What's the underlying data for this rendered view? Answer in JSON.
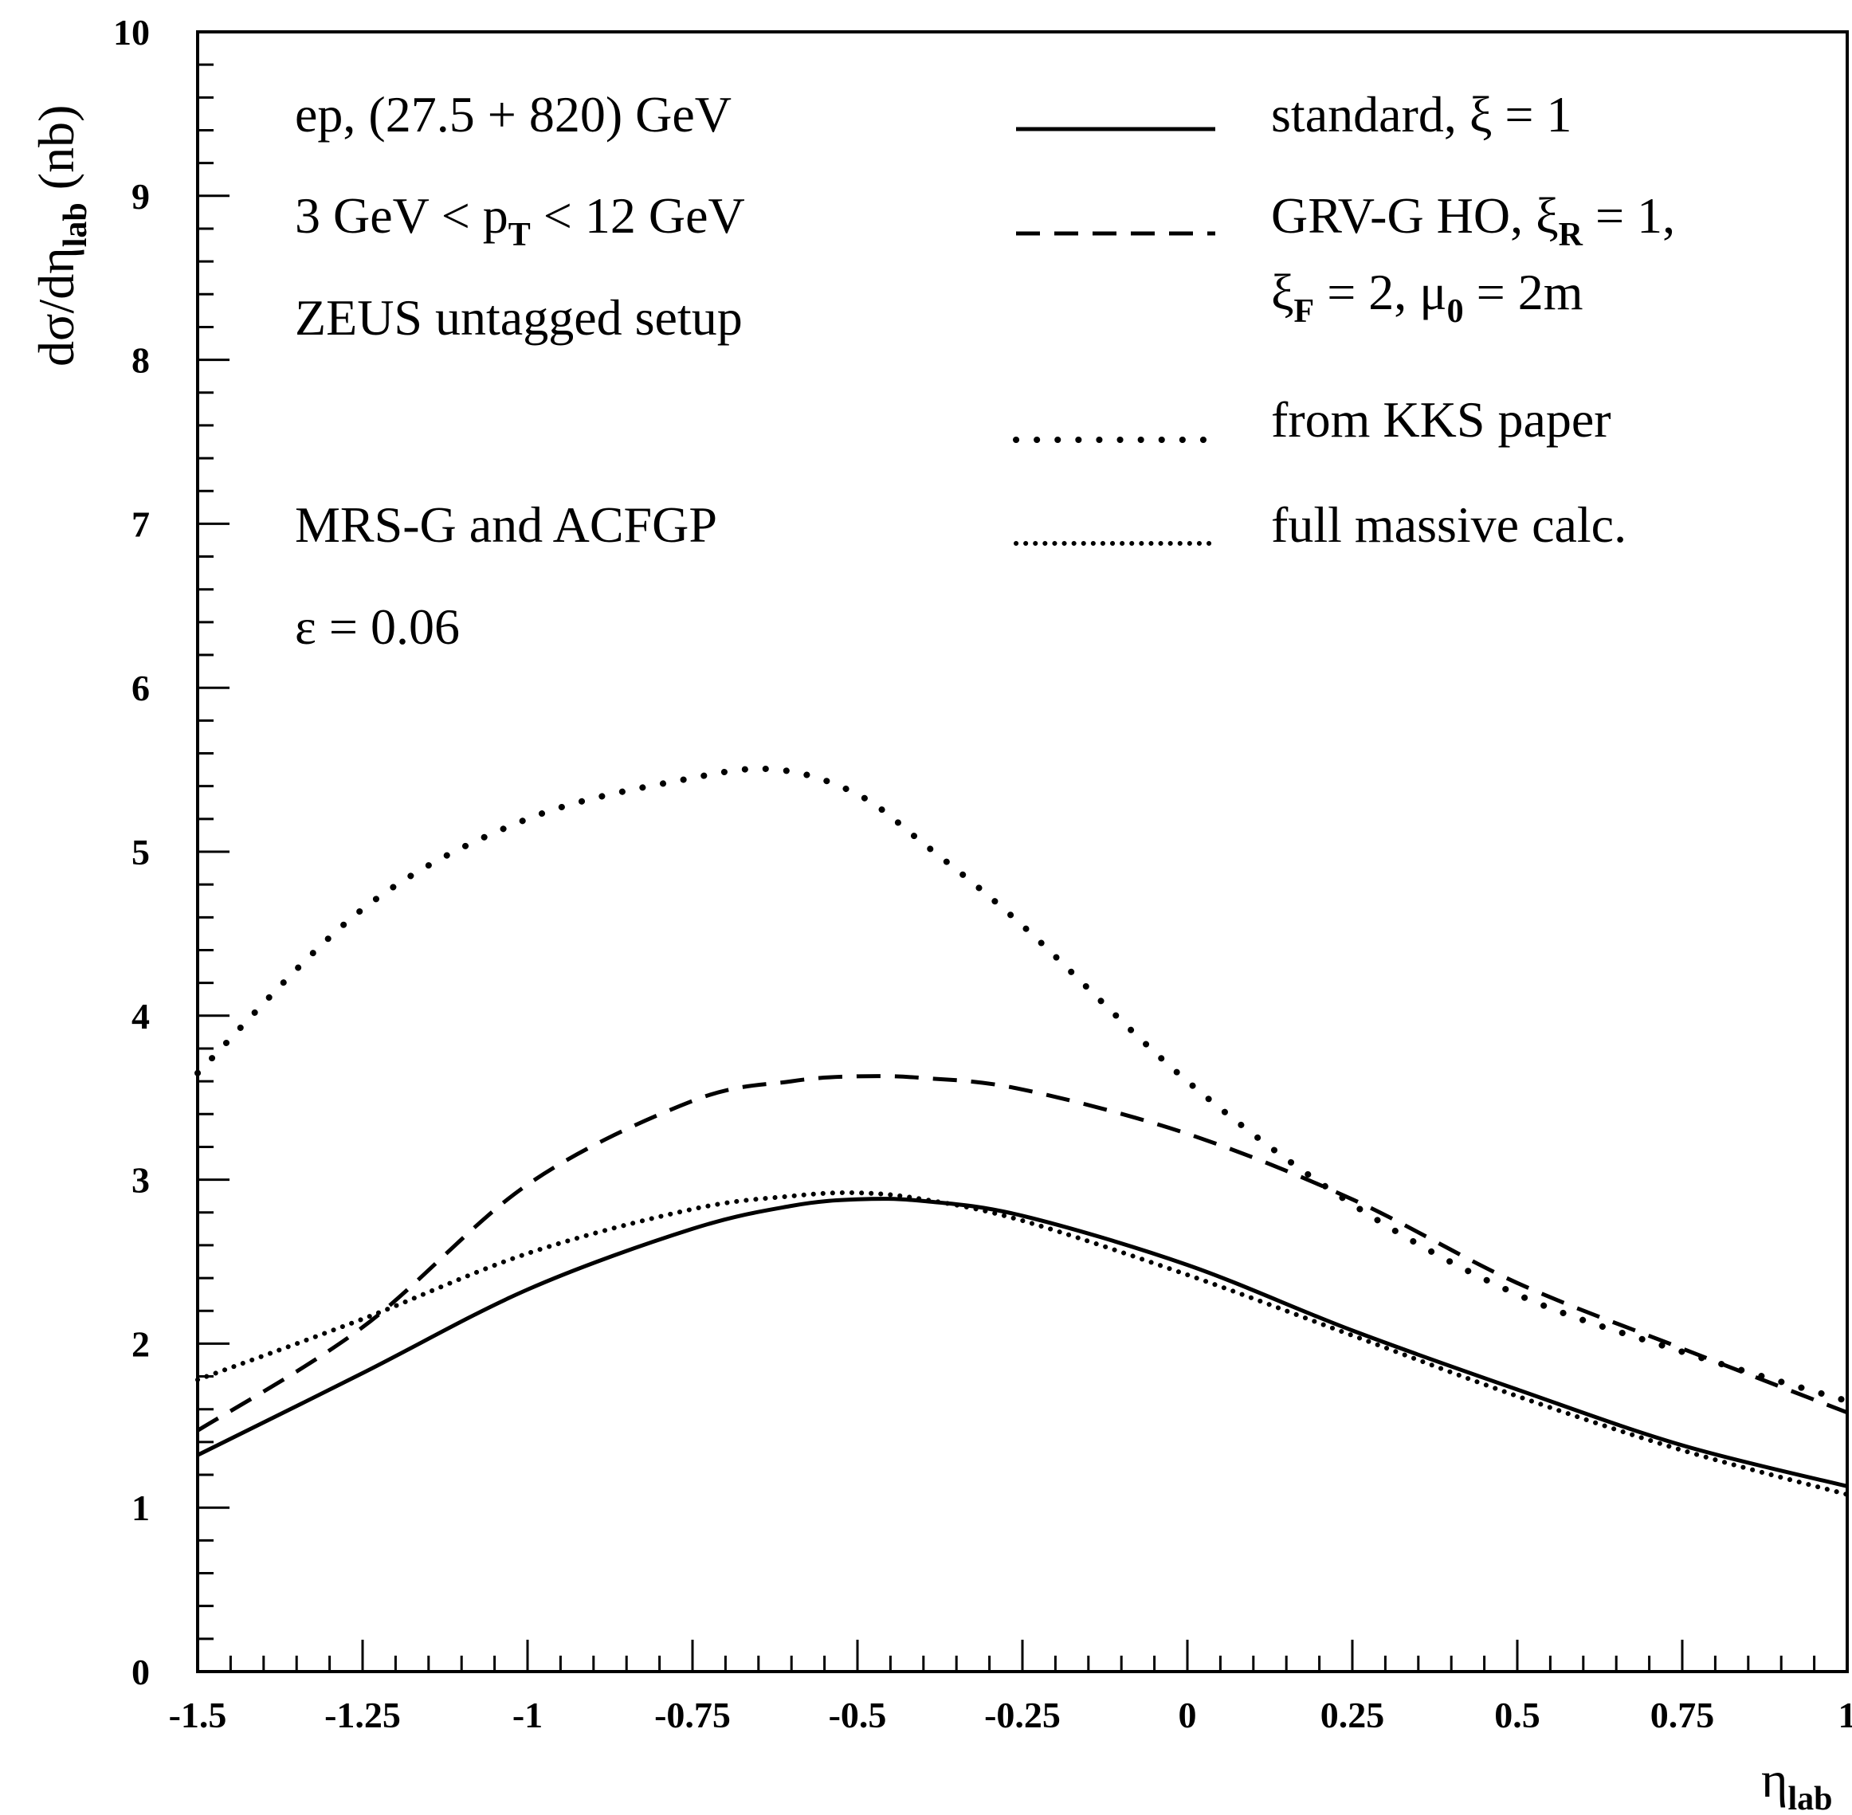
{
  "chart_data": {
    "type": "line",
    "xlabel": {
      "main": "η",
      "sub": "lab"
    },
    "ylabel": {
      "pre": "dσ/dη",
      "sub": "lab",
      "post": " (nb)"
    },
    "xlim": [
      -1.5,
      1.0
    ],
    "ylim": [
      0,
      10
    ],
    "x_ticks": [
      "-1.5",
      "-1.25",
      "-1",
      "-0.75",
      "-0.5",
      "-0.25",
      "0",
      "0.25",
      "0.5",
      "0.75",
      "1"
    ],
    "x_tick_values": [
      -1.5,
      -1.25,
      -1.0,
      -0.75,
      -0.5,
      -0.25,
      0.0,
      0.25,
      0.5,
      0.75,
      1.0
    ],
    "y_ticks": [
      "0",
      "1",
      "2",
      "3",
      "4",
      "5",
      "6",
      "7",
      "8",
      "9",
      "10"
    ],
    "y_tick_values": [
      0,
      1,
      2,
      3,
      4,
      5,
      6,
      7,
      8,
      9,
      10
    ],
    "grid": false,
    "legend_position": "top-right",
    "annotations": [
      {
        "id": "ann-beam",
        "parts": [
          {
            "t": "ep,  (27.5 + 820) GeV"
          }
        ]
      },
      {
        "id": "ann-pt",
        "parts": [
          {
            "t": "3 GeV < p"
          },
          {
            "t": "T",
            "sub": true
          },
          {
            "t": " < 12 GeV"
          }
        ]
      },
      {
        "id": "ann-setup",
        "parts": [
          {
            "t": "ZEUS untagged setup"
          }
        ]
      },
      {
        "id": "ann-pdf",
        "parts": [
          {
            "t": "MRS-G and ACFGP"
          }
        ]
      },
      {
        "id": "ann-eps",
        "parts": [
          {
            "t": "ε = 0.06"
          }
        ]
      }
    ],
    "legend": [
      {
        "style": "solid",
        "lines": [
          [
            {
              "t": "standard, ξ = 1"
            }
          ]
        ]
      },
      {
        "style": "dashed",
        "lines": [
          [
            {
              "t": "GRV-G HO, ξ"
            },
            {
              "t": "R",
              "sub": true
            },
            {
              "t": " = 1,"
            }
          ],
          [
            {
              "t": "ξ"
            },
            {
              "t": "F",
              "sub": true
            },
            {
              "t": " = 2, μ"
            },
            {
              "t": "0",
              "sub": true
            },
            {
              "t": " = 2m"
            }
          ]
        ]
      },
      {
        "style": "sparse-dotted",
        "lines": [
          [
            {
              "t": "from KKS paper"
            }
          ]
        ]
      },
      {
        "style": "dense-dotted",
        "lines": [
          [
            {
              "t": "full massive calc."
            }
          ]
        ]
      }
    ],
    "series": [
      {
        "style": "solid",
        "x": [
          -1.5,
          -1.25,
          -1.0,
          -0.75,
          -0.6,
          -0.5,
          -0.4,
          -0.25,
          0.0,
          0.25,
          0.5,
          0.75,
          1.0
        ],
        "y": [
          1.32,
          1.82,
          2.33,
          2.7,
          2.84,
          2.88,
          2.87,
          2.78,
          2.48,
          2.08,
          1.72,
          1.38,
          1.13
        ]
      },
      {
        "style": "dashed",
        "x": [
          -1.5,
          -1.25,
          -1.0,
          -0.75,
          -0.6,
          -0.5,
          -0.4,
          -0.25,
          0.0,
          0.25,
          0.5,
          0.75,
          1.0
        ],
        "y": [
          1.47,
          2.1,
          2.97,
          3.48,
          3.6,
          3.63,
          3.62,
          3.55,
          3.28,
          2.88,
          2.37,
          1.97,
          1.58
        ]
      },
      {
        "style": "sparse-dotted",
        "x": [
          -1.5,
          -1.25,
          -1.0,
          -0.75,
          -0.62,
          -0.5,
          -0.4,
          -0.25,
          0.0,
          0.25,
          0.5,
          0.75,
          1.0
        ],
        "y": [
          3.65,
          4.65,
          5.2,
          5.45,
          5.5,
          5.35,
          5.05,
          4.55,
          3.6,
          2.85,
          2.3,
          1.95,
          1.65
        ]
      },
      {
        "style": "dense-dotted",
        "x": [
          -1.5,
          -1.25,
          -1.0,
          -0.75,
          -0.6,
          -0.5,
          -0.4,
          -0.25,
          0.0,
          0.25,
          0.5,
          0.75,
          1.0
        ],
        "y": [
          1.78,
          2.15,
          2.55,
          2.82,
          2.9,
          2.92,
          2.88,
          2.75,
          2.42,
          2.05,
          1.68,
          1.35,
          1.08
        ]
      }
    ]
  }
}
